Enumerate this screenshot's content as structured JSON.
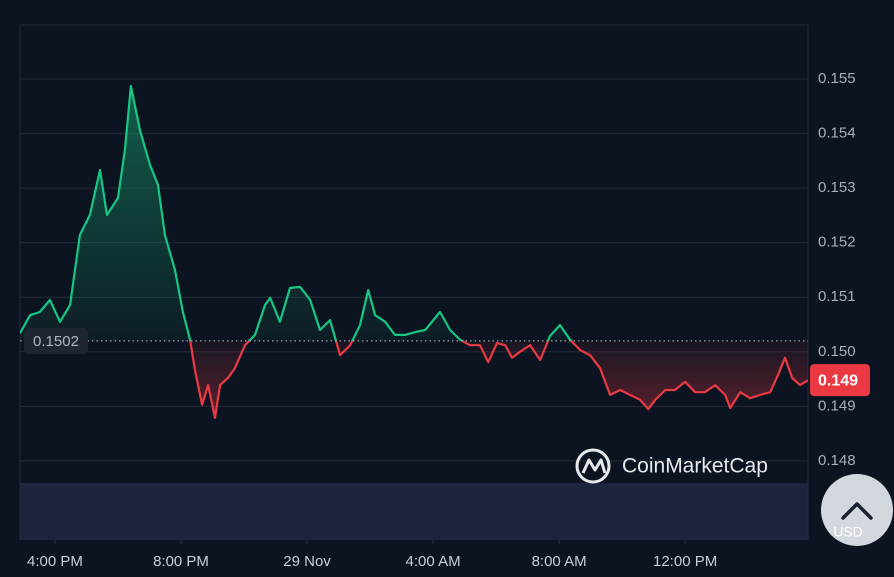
{
  "chart_data": {
    "type": "line",
    "x": [
      -1.11,
      -0.79,
      -0.48,
      -0.16,
      0.16,
      0.48,
      0.79,
      1.11,
      1.43,
      1.65,
      2.0,
      2.22,
      2.41,
      2.7,
      3.02,
      3.27,
      3.49,
      3.81,
      4.06,
      4.29,
      4.44,
      4.67,
      4.86,
      5.08,
      5.24,
      5.49,
      5.71,
      6.03,
      6.35,
      6.67,
      6.83,
      7.14,
      7.46,
      7.78,
      8.1,
      8.41,
      8.73,
      9.05,
      9.37,
      9.68,
      9.94,
      10.16,
      10.48,
      10.79,
      11.11,
      11.43,
      11.75,
      12.22,
      12.54,
      12.86,
      13.17,
      13.49,
      13.75,
      14.03,
      14.29,
      14.51,
      14.76,
      15.08,
      15.4,
      15.71,
      16.03,
      16.35,
      16.67,
      16.98,
      17.3,
      17.62,
      17.94,
      18.25,
      18.57,
      18.83,
      19.05,
      19.37,
      19.68,
      20.0,
      20.32,
      20.63,
      20.95,
      21.27,
      21.43,
      21.75,
      22.06,
      22.38,
      22.7,
      22.95,
      23.17,
      23.4,
      23.65,
      23.9
    ],
    "series": [
      {
        "values": [
          0.15034,
          0.15067,
          0.15073,
          0.15095,
          0.15055,
          0.15086,
          0.15214,
          0.15251,
          0.15333,
          0.15251,
          0.15282,
          0.1537,
          0.15487,
          0.15406,
          0.15342,
          0.15306,
          0.15214,
          0.1515,
          0.15073,
          0.15022,
          0.14967,
          0.14903,
          0.14939,
          0.14879,
          0.14939,
          0.14952,
          0.1497,
          0.15012,
          0.15031,
          0.15086,
          0.15099,
          0.15055,
          0.15117,
          0.15119,
          0.15095,
          0.1504,
          0.15058,
          0.14994,
          0.15012,
          0.15049,
          0.15113,
          0.15067,
          0.15055,
          0.15031,
          0.15031,
          0.15036,
          0.1504,
          0.15073,
          0.1504,
          0.15022,
          0.15012,
          0.15012,
          0.14981,
          0.15016,
          0.15012,
          0.14989,
          0.15,
          0.15012,
          0.14985,
          0.15029,
          0.15049,
          0.15022,
          0.15003,
          0.14994,
          0.1497,
          0.14921,
          0.1493,
          0.14921,
          0.14912,
          0.14895,
          0.14912,
          0.1493,
          0.1493,
          0.14945,
          0.14926,
          0.14926,
          0.14939,
          0.14921,
          0.14897,
          0.14926,
          0.14915,
          0.14921,
          0.14926,
          0.14958,
          0.14989,
          0.14952,
          0.14939,
          0.14948
        ]
      }
    ],
    "up_color": "#16c784",
    "down_color": "#ea3943",
    "baseline": 0.1502,
    "last_price": {
      "value": 0.14948,
      "label": "0.149"
    },
    "xlim": [
      -1.11,
      23.9
    ],
    "xticks": [
      {
        "value": 0,
        "label": "4:00 PM"
      },
      {
        "value": 4,
        "label": "8:00 PM"
      },
      {
        "value": 8,
        "label": "29 Nov"
      },
      {
        "value": 12,
        "label": "4:00 AM"
      },
      {
        "value": 16,
        "label": "8:00 AM"
      },
      {
        "value": 20,
        "label": "12:00 PM"
      }
    ],
    "ylim": [
      0.14655,
      0.15599
    ],
    "yticks": [
      0.148,
      0.149,
      {
        "value": 0.15,
        "label": "0.150"
      },
      0.151,
      0.152,
      0.153,
      0.154,
      0.155
    ],
    "grid": true
  },
  "watermark": "CoinMarketCap",
  "currency_button": "USD"
}
